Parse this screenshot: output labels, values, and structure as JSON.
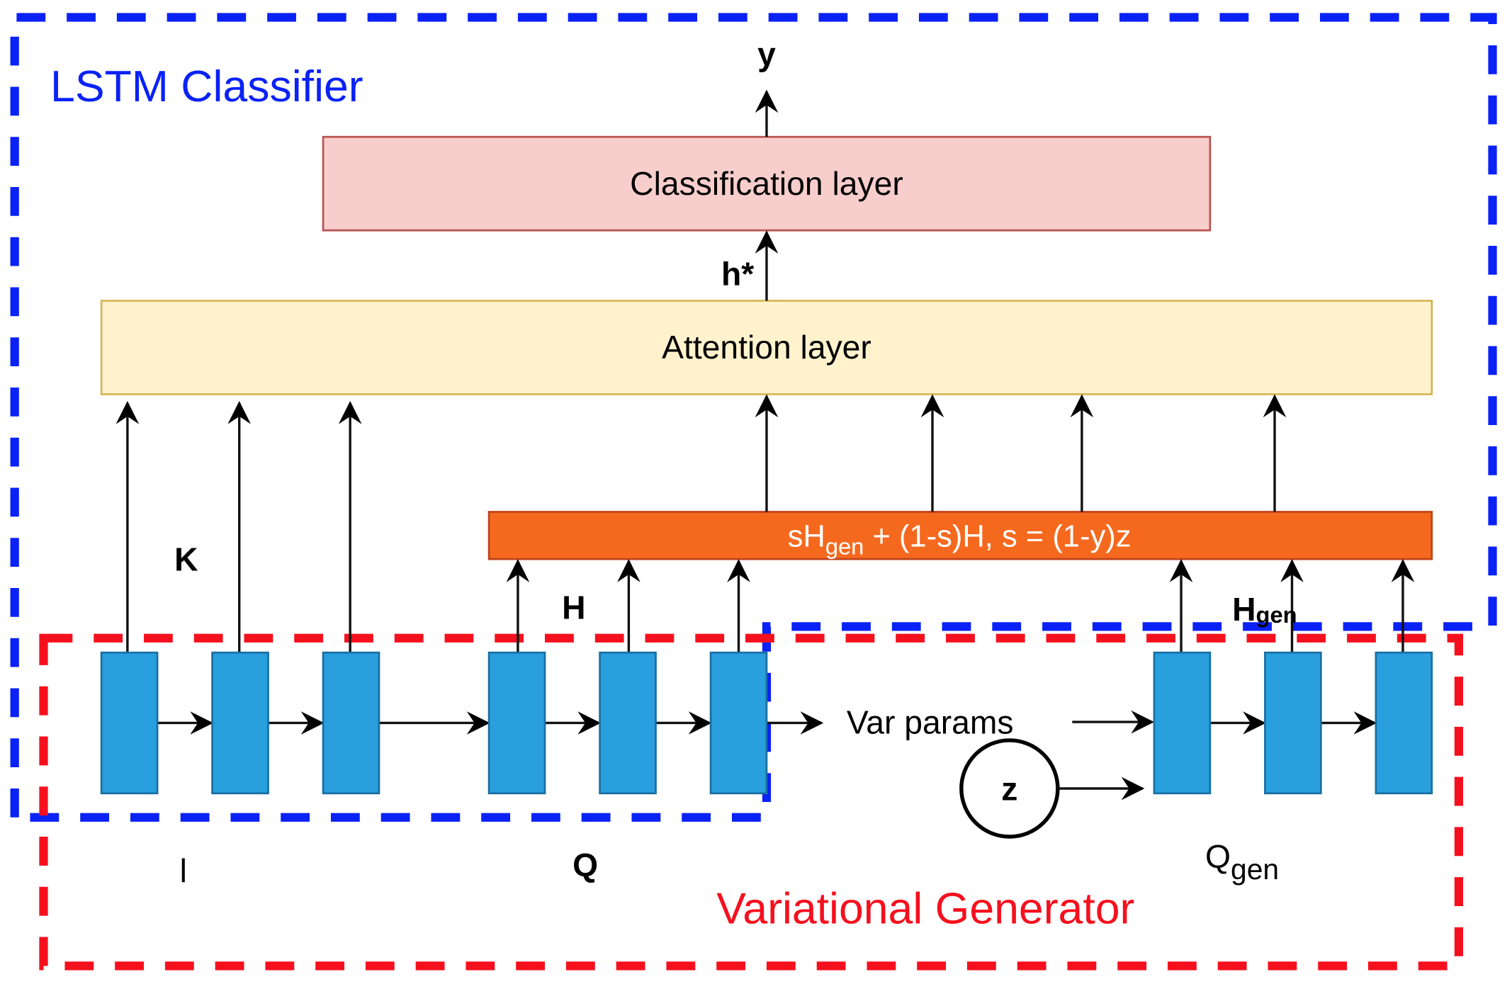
{
  "groups": {
    "classifier": {
      "title": "LSTM Classifier",
      "color": "#0a22f5"
    },
    "generator": {
      "title": "Variational Generator",
      "color": "#f5101e"
    }
  },
  "layers": {
    "classification": {
      "label": "Classification layer",
      "fill": "#f8cecc",
      "stroke": "#b85450"
    },
    "attention": {
      "label": "Attention layer",
      "fill": "#fff2cc",
      "stroke": "#d6b656"
    },
    "mix": {
      "label_pre": "sH",
      "label_sub": "gen",
      "label_post": " + (1-s)H, s = (1-y)z",
      "fill": "#f5691e"
    }
  },
  "labels": {
    "y": "y",
    "h_star": "h*",
    "K": "K",
    "H": "H",
    "H_gen_main": "H",
    "H_gen_sub": "gen",
    "l": "l",
    "Q": "Q",
    "Q_gen_main": "Q",
    "Q_gen_sub": "gen",
    "var_params": "Var params",
    "z": "z"
  },
  "cell_color": "#299fdd"
}
